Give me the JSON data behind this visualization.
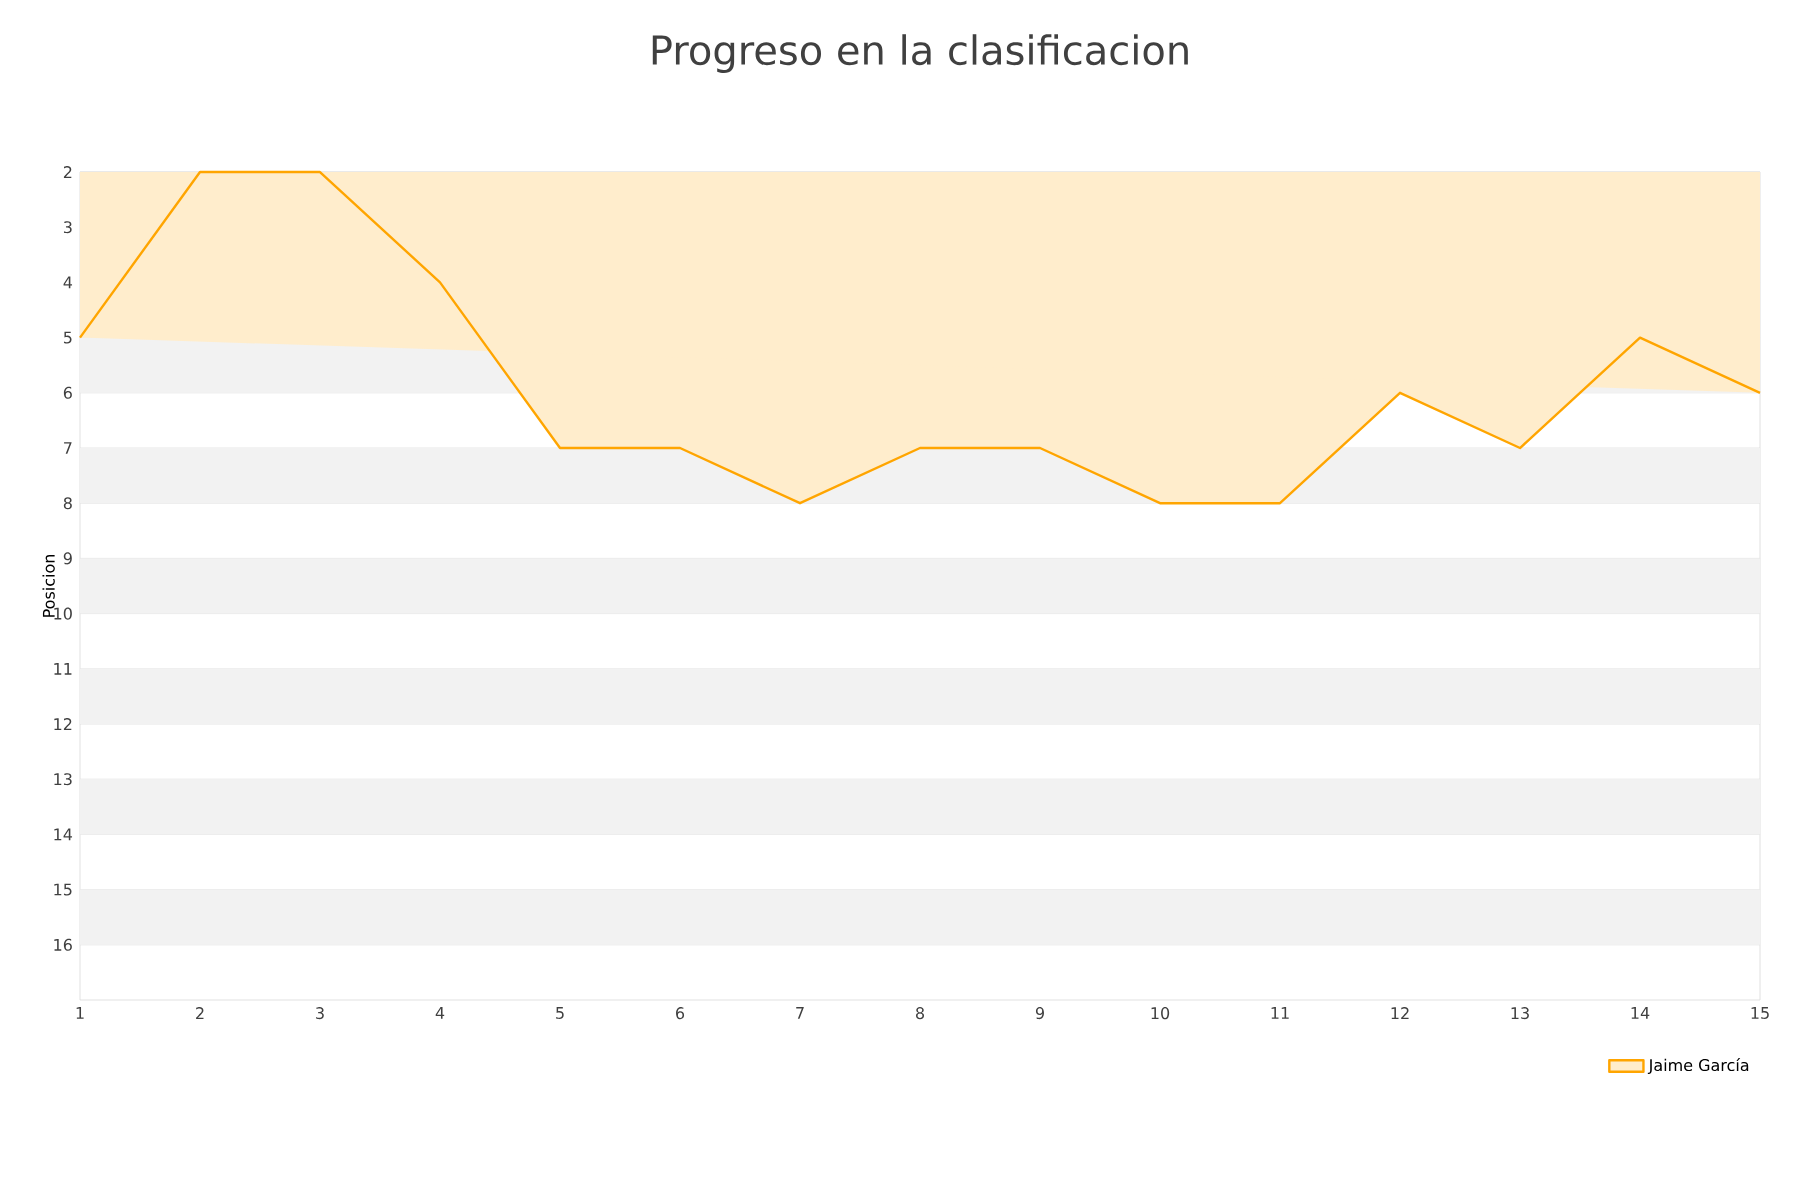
{
  "chart_data": {
    "type": "area",
    "title": "Progreso en la clasificacion",
    "ylabel": "Posicion",
    "x": [
      1,
      2,
      3,
      4,
      5,
      6,
      7,
      8,
      9,
      10,
      11,
      12,
      13,
      14,
      15
    ],
    "series": [
      {
        "name": "Jaime García",
        "color": "#ffa500",
        "values": [
          5,
          2,
          2,
          4,
          7,
          7,
          8,
          7,
          7,
          8,
          8,
          6,
          7,
          5,
          6
        ]
      }
    ],
    "xlim": [
      1,
      15
    ],
    "xticks": [
      1,
      2,
      3,
      4,
      5,
      6,
      7,
      8,
      9,
      10,
      11,
      12,
      13,
      14,
      15
    ],
    "ylim": [
      17,
      2
    ],
    "yticks": [
      2,
      3,
      4,
      5,
      6,
      7,
      8,
      9,
      10,
      11,
      12,
      13,
      14,
      15,
      16
    ],
    "grid": "y",
    "legend": "bottom right"
  }
}
